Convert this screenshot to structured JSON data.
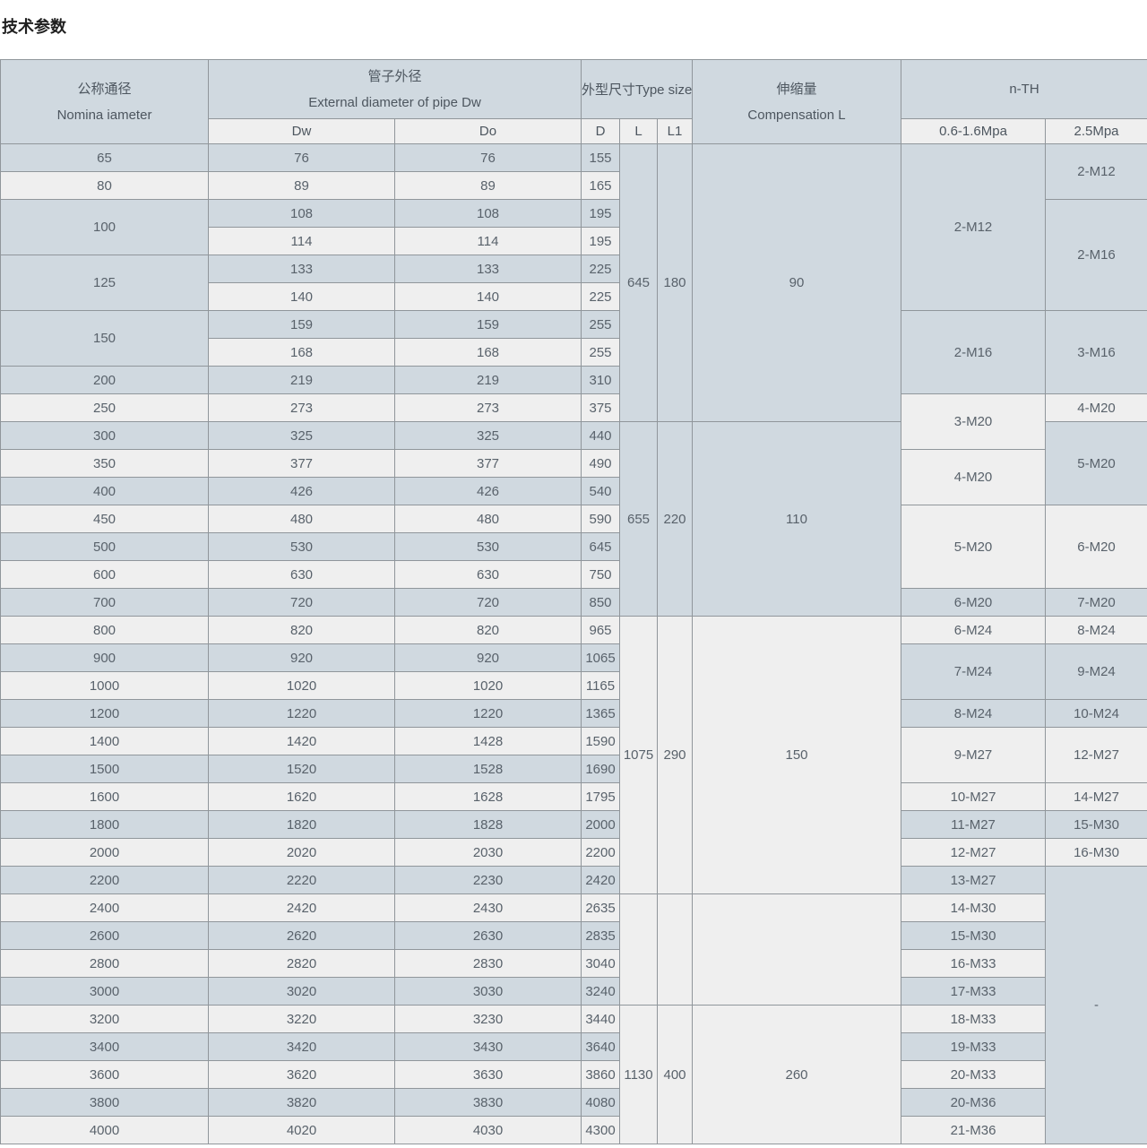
{
  "title": "技术参数",
  "colors": {
    "stripe_blue": "#d0d9e0",
    "stripe_light": "#efefef",
    "border": "#90969b",
    "cell_text": "#59626b",
    "header_text": "#4d565f",
    "title_text": "#1f1f1f",
    "page_bg": "#ffffff"
  },
  "header": {
    "nominal_zh": "公称通径",
    "nominal_en": "Nomina iameter",
    "pipe_zh": "管子外径",
    "pipe_en": "External diameter of pipe Dw",
    "dw": "Dw",
    "do": "Do",
    "type_size": "外型尺寸Type size",
    "d": "D",
    "l": "L",
    "l1": "L1",
    "comp_zh": "伸缩量",
    "comp_en": "Compensation L",
    "nth": "n-TH",
    "p_low": "0.6-1.6Mpa",
    "p_high": "2.5Mpa"
  },
  "table": {
    "nominal": [
      {
        "label": "65",
        "span": 1
      },
      {
        "label": "80",
        "span": 1
      },
      {
        "label": "100",
        "span": 2
      },
      {
        "label": "125",
        "span": 2
      },
      {
        "label": "150",
        "span": 2
      },
      {
        "label": "200",
        "span": 1
      },
      {
        "label": "250",
        "span": 1
      },
      {
        "label": "300",
        "span": 1
      },
      {
        "label": "350",
        "span": 1
      },
      {
        "label": "400",
        "span": 1
      },
      {
        "label": "450",
        "span": 1
      },
      {
        "label": "500",
        "span": 1
      },
      {
        "label": "600",
        "span": 1
      },
      {
        "label": "700",
        "span": 1
      },
      {
        "label": "800",
        "span": 1
      },
      {
        "label": "900",
        "span": 1
      },
      {
        "label": "1000",
        "span": 1
      },
      {
        "label": "1200",
        "span": 1
      },
      {
        "label": "1400",
        "span": 1
      },
      {
        "label": "1500",
        "span": 1
      },
      {
        "label": "1600",
        "span": 1
      },
      {
        "label": "1800",
        "span": 1
      },
      {
        "label": "2000",
        "span": 1
      },
      {
        "label": "2200",
        "span": 1
      },
      {
        "label": "2400",
        "span": 1
      },
      {
        "label": "2600",
        "span": 1
      },
      {
        "label": "2800",
        "span": 1
      },
      {
        "label": "3000",
        "span": 1
      },
      {
        "label": "3200",
        "span": 1
      },
      {
        "label": "3400",
        "span": 1
      },
      {
        "label": "3600",
        "span": 1
      },
      {
        "label": "3800",
        "span": 1
      },
      {
        "label": "4000",
        "span": 1
      }
    ],
    "rows": [
      [
        "76",
        "76",
        "155"
      ],
      [
        "89",
        "89",
        "165"
      ],
      [
        "108",
        "108",
        "195"
      ],
      [
        "114",
        "114",
        "195"
      ],
      [
        "133",
        "133",
        "225"
      ],
      [
        "140",
        "140",
        "225"
      ],
      [
        "159",
        "159",
        "255"
      ],
      [
        "168",
        "168",
        "255"
      ],
      [
        "219",
        "219",
        "310"
      ],
      [
        "273",
        "273",
        "375"
      ],
      [
        "325",
        "325",
        "440"
      ],
      [
        "377",
        "377",
        "490"
      ],
      [
        "426",
        "426",
        "540"
      ],
      [
        "480",
        "480",
        "590"
      ],
      [
        "530",
        "530",
        "645"
      ],
      [
        "630",
        "630",
        "750"
      ],
      [
        "720",
        "720",
        "850"
      ],
      [
        "820",
        "820",
        "965"
      ],
      [
        "920",
        "920",
        "1065"
      ],
      [
        "1020",
        "1020",
        "1165"
      ],
      [
        "1220",
        "1220",
        "1365"
      ],
      [
        "1420",
        "1428",
        "1590"
      ],
      [
        "1520",
        "1528",
        "1690"
      ],
      [
        "1620",
        "1628",
        "1795"
      ],
      [
        "1820",
        "1828",
        "2000"
      ],
      [
        "2020",
        "2030",
        "2200"
      ],
      [
        "2220",
        "2230",
        "2420"
      ],
      [
        "2420",
        "2430",
        "2635"
      ],
      [
        "2620",
        "2630",
        "2835"
      ],
      [
        "2820",
        "2830",
        "3040"
      ],
      [
        "3020",
        "3030",
        "3240"
      ],
      [
        "3220",
        "3230",
        "3440"
      ],
      [
        "3420",
        "3430",
        "3640"
      ],
      [
        "3620",
        "3630",
        "3860"
      ],
      [
        "3820",
        "3830",
        "4080"
      ],
      [
        "4020",
        "4030",
        "4300"
      ]
    ],
    "blocks": [
      {
        "span": 10,
        "l": "645",
        "l1": "180",
        "comp": "90"
      },
      {
        "span": 7,
        "l": "655",
        "l1": "220",
        "comp": "110"
      },
      {
        "span": 10,
        "l": "1075",
        "l1": "290",
        "comp": "150"
      },
      {
        "span": 4,
        "l": "",
        "l1": "",
        "comp": ""
      },
      {
        "span": 5,
        "l": "1130",
        "l1": "400",
        "comp": "260"
      }
    ],
    "nth_low": [
      {
        "label": "2-M12",
        "span": 6
      },
      {
        "label": "2-M16",
        "span": 3
      },
      {
        "label": "3-M20",
        "span": 2
      },
      {
        "label": "4-M20",
        "span": 2
      },
      {
        "label": "5-M20",
        "span": 3
      },
      {
        "label": "6-M20",
        "span": 1
      },
      {
        "label": "6-M24",
        "span": 1
      },
      {
        "label": "7-M24",
        "span": 2
      },
      {
        "label": "8-M24",
        "span": 1
      },
      {
        "label": "9-M27",
        "span": 2
      },
      {
        "label": "10-M27",
        "span": 1
      },
      {
        "label": "11-M27",
        "span": 1
      },
      {
        "label": "12-M27",
        "span": 1
      },
      {
        "label": "13-M27",
        "span": 1
      },
      {
        "label": "14-M30",
        "span": 1
      },
      {
        "label": "15-M30",
        "span": 1
      },
      {
        "label": "16-M33",
        "span": 1
      },
      {
        "label": "17-M33",
        "span": 1
      },
      {
        "label": "18-M33",
        "span": 1
      },
      {
        "label": "19-M33",
        "span": 1
      },
      {
        "label": "20-M33",
        "span": 1
      },
      {
        "label": "20-M36",
        "span": 1
      },
      {
        "label": "21-M36",
        "span": 1
      }
    ],
    "nth_high": [
      {
        "label": "2-M12",
        "span": 2
      },
      {
        "label": "2-M16",
        "span": 4
      },
      {
        "label": "3-M16",
        "span": 3
      },
      {
        "label": "4-M20",
        "span": 1
      },
      {
        "label": "5-M20",
        "span": 3
      },
      {
        "label": "6-M20",
        "span": 3
      },
      {
        "label": "7-M20",
        "span": 1
      },
      {
        "label": "8-M24",
        "span": 1
      },
      {
        "label": "9-M24",
        "span": 2
      },
      {
        "label": "10-M24",
        "span": 1
      },
      {
        "label": "12-M27",
        "span": 2
      },
      {
        "label": "14-M27",
        "span": 1
      },
      {
        "label": "15-M30",
        "span": 1
      },
      {
        "label": "16-M30",
        "span": 1
      },
      {
        "label": "-",
        "span": 10
      }
    ]
  }
}
